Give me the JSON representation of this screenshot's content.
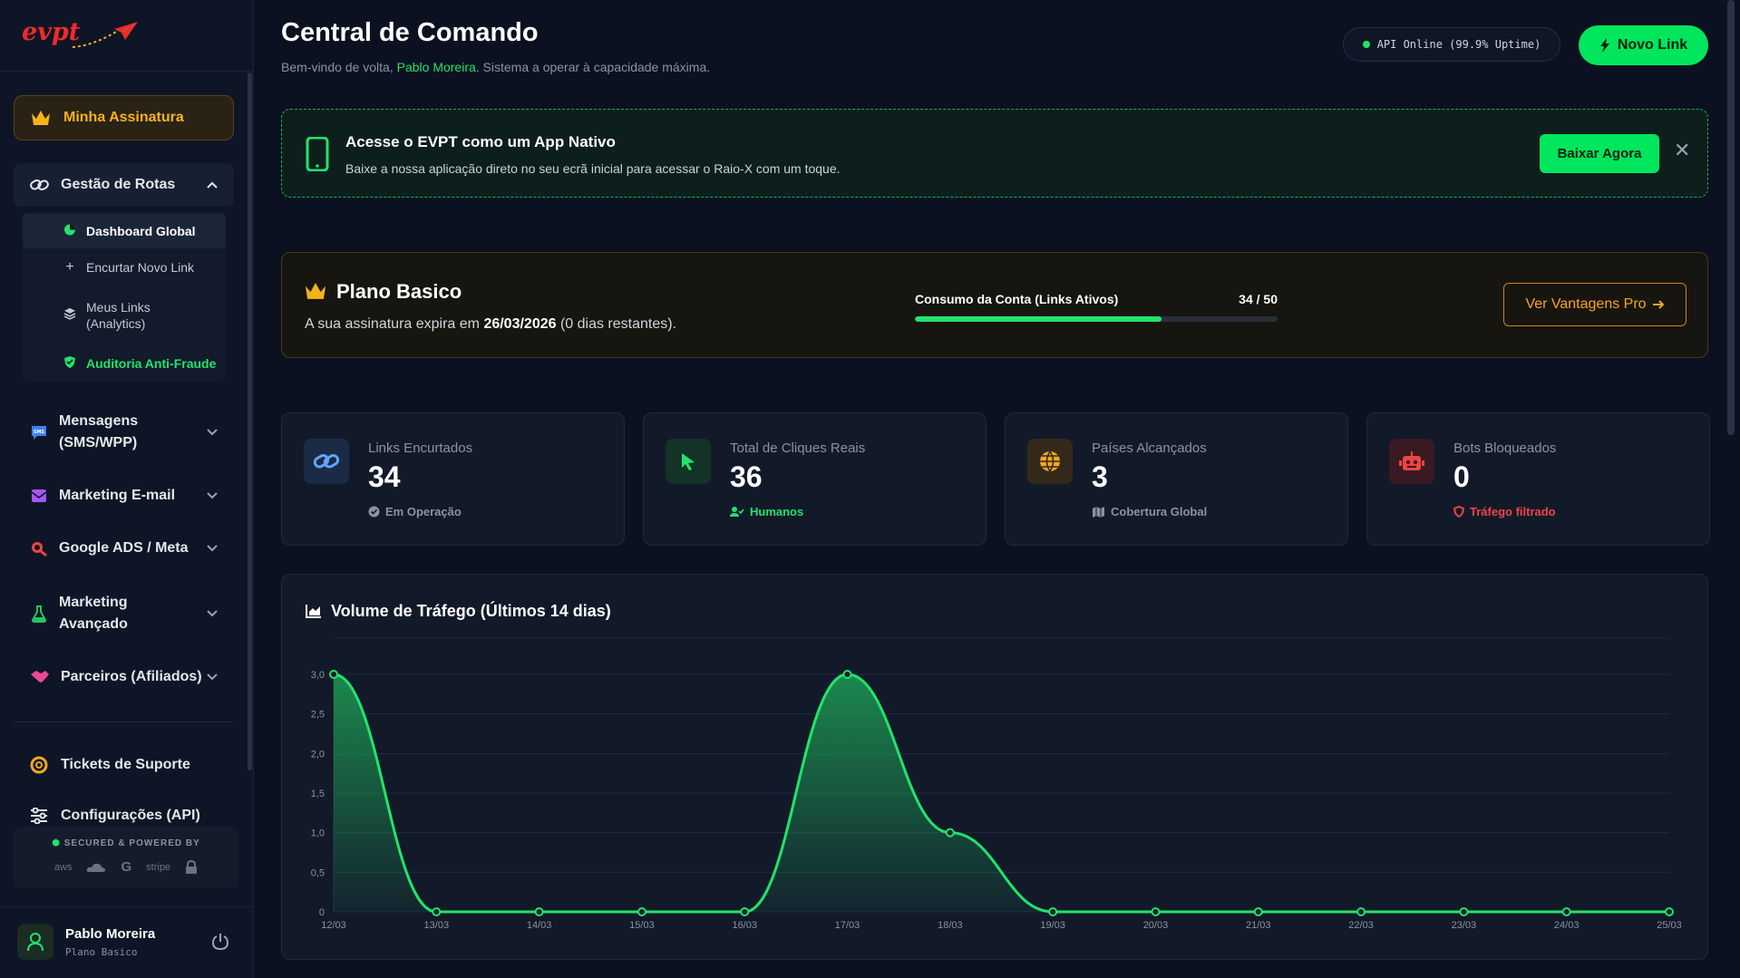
{
  "sidebar": {
    "logo_text": "evpt",
    "subscription_label": "Minha Assinatura",
    "routes_section": "Gestão de Rotas",
    "routes_items": [
      {
        "label": "Dashboard Global"
      },
      {
        "label": "Encurtar Novo Link"
      },
      {
        "label": "Meus Links (Analytics)"
      },
      {
        "label": "Auditoria Anti-Fraude"
      }
    ],
    "sections": [
      {
        "label": "Mensagens (SMS/WPP)"
      },
      {
        "label": "Marketing E-mail"
      },
      {
        "label": "Google ADS / Meta"
      },
      {
        "label": "Marketing Avançado"
      },
      {
        "label": "Parceiros (Afiliados)"
      }
    ],
    "support_label": "Tickets de Suporte",
    "settings_label": "Configurações (API)",
    "powered_title": "SECURED & POWERED BY",
    "powered_aws": "aws",
    "powered_stripe": "stripe",
    "user_name": "Pablo Moreira",
    "user_plan": "Plano Basico"
  },
  "header": {
    "title": "Central de Comando",
    "welcome_prefix": "Bem-vindo de volta, ",
    "welcome_name": "Pablo Moreira",
    "welcome_suffix": ". Sistema a operar à capacidade máxima.",
    "api_status": "API Online (99.9% Uptime)",
    "new_link_label": "Novo Link"
  },
  "app_banner": {
    "title": "Acesse o EVPT como um App Nativo",
    "description": "Baixe a nossa aplicação direto no seu ecrã inicial para acessar o Raio-X com um toque.",
    "button_label": "Baixar Agora",
    "close": "✕"
  },
  "plan": {
    "title": "Plano Basico",
    "desc_prefix": "A sua assinatura expira em ",
    "expiry_date": "26/03/2026",
    "desc_suffix": " (0 dias restantes).",
    "usage_label": "Consumo da Conta (Links Ativos)",
    "usage_text": "34 / 50",
    "usage_used": 34,
    "usage_total": 50,
    "pro_button": "Ver Vantagens Pro"
  },
  "stats": [
    {
      "label": "Links Encurtados",
      "value": "34",
      "footer": "Em Operação",
      "accent": "#60a5fa"
    },
    {
      "label": "Total de Cliques Reais",
      "value": "36",
      "footer": "Humanos",
      "accent": "#22e36a"
    },
    {
      "label": "Países Alcançados",
      "value": "3",
      "footer": "Cobertura Global",
      "accent": "#f5a524"
    },
    {
      "label": "Bots Bloqueados",
      "value": "0",
      "footer": "Tráfego filtrado",
      "accent": "#ef4444"
    }
  ],
  "chart": {
    "title": "Volume de Tráfego (Últimos 14 dias)"
  },
  "chart_data": {
    "type": "area",
    "x": [
      "12/03",
      "13/03",
      "14/03",
      "15/03",
      "16/03",
      "17/03",
      "18/03",
      "19/03",
      "20/03",
      "21/03",
      "22/03",
      "23/03",
      "24/03",
      "25/03"
    ],
    "values": [
      3,
      0,
      0,
      0,
      0,
      3,
      1,
      0,
      0,
      0,
      0,
      0,
      0,
      0
    ],
    "y_ticks": [
      "0",
      "0,5",
      "1,0",
      "1,5",
      "2,0",
      "2,5",
      "3,0"
    ],
    "ylim": [
      0,
      3
    ],
    "grid": true,
    "color": "#22e36a"
  }
}
